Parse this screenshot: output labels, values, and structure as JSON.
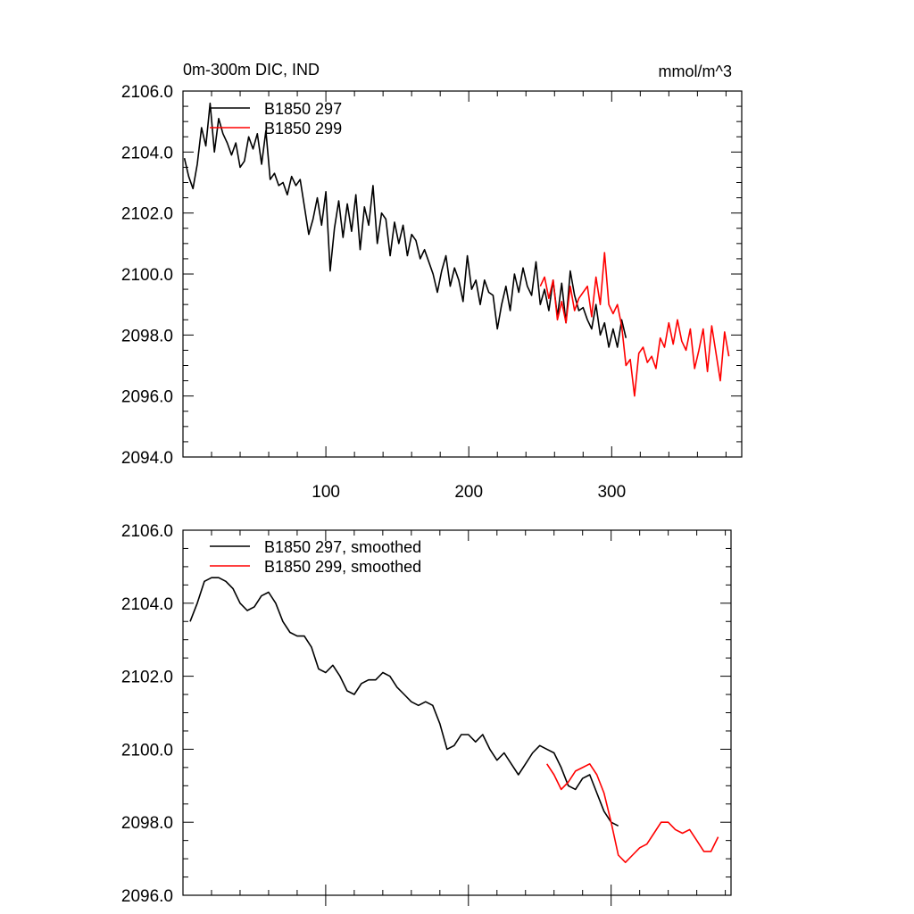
{
  "chart_data": [
    {
      "type": "line",
      "title": "0m-300m DIC, IND",
      "units_label": "mmol/m^3",
      "xlim": [
        0,
        391
      ],
      "ylim": [
        2094,
        2106
      ],
      "xticks": [
        100,
        200,
        300
      ],
      "xtick_labels": [
        "100",
        "200",
        "300"
      ],
      "yticks": [
        2094,
        2096,
        2098,
        2100,
        2102,
        2104,
        2106
      ],
      "ytick_labels": [
        "2094.0",
        "2096.0",
        "2098.0",
        "2100.0",
        "2102.0",
        "2104.0",
        "2106.0"
      ],
      "grid": false,
      "legend_position": "top-left",
      "series": [
        {
          "name": "B1850 297",
          "color": "#000000",
          "x_start": 1,
          "x_step": 3,
          "values": [
            2103.8,
            2103.2,
            2102.8,
            2103.6,
            2104.8,
            2104.2,
            2105.6,
            2104.0,
            2105.1,
            2104.6,
            2104.3,
            2103.9,
            2104.3,
            2103.5,
            2103.7,
            2104.5,
            2104.1,
            2104.6,
            2103.6,
            2104.7,
            2103.1,
            2103.3,
            2102.9,
            2103.0,
            2102.6,
            2103.2,
            2102.9,
            2103.1,
            2102.2,
            2101.3,
            2101.8,
            2102.5,
            2101.6,
            2102.7,
            2100.1,
            2101.5,
            2102.4,
            2101.2,
            2102.3,
            2101.4,
            2102.6,
            2100.8,
            2102.2,
            2101.6,
            2102.9,
            2101.0,
            2102.0,
            2101.8,
            2100.6,
            2101.7,
            2101.0,
            2101.6,
            2100.6,
            2101.3,
            2101.1,
            2100.5,
            2100.8,
            2100.4,
            2100.0,
            2099.4,
            2100.1,
            2100.6,
            2099.6,
            2100.2,
            2099.8,
            2099.1,
            2100.6,
            2099.5,
            2099.8,
            2099.0,
            2099.8,
            2099.4,
            2099.3,
            2098.2,
            2099.0,
            2099.6,
            2098.8,
            2100.0,
            2099.4,
            2100.2,
            2099.6,
            2099.3,
            2100.4,
            2099.0,
            2099.5,
            2098.8,
            2099.8,
            2098.6,
            2099.7,
            2098.4,
            2100.1,
            2099.3,
            2098.8,
            2098.9,
            2098.5,
            2098.2,
            2099.0,
            2098.0,
            2098.4,
            2097.6,
            2098.2,
            2097.6,
            2098.5,
            2097.9
          ]
        },
        {
          "name": "B1850 299",
          "color": "#ff0000",
          "x_start": 250,
          "x_step": 3,
          "values": [
            2099.6,
            2099.9,
            2099.2,
            2099.8,
            2098.5,
            2099.1,
            2098.4,
            2099.6,
            2098.8,
            2099.2,
            2099.4,
            2099.6,
            2098.6,
            2099.9,
            2099.0,
            2100.7,
            2099.0,
            2098.7,
            2099.0,
            2098.3,
            2097.0,
            2097.2,
            2096.0,
            2097.4,
            2097.6,
            2097.1,
            2097.3,
            2096.9,
            2097.9,
            2097.6,
            2098.4,
            2097.7,
            2098.5,
            2097.8,
            2097.5,
            2098.2,
            2096.9,
            2097.5,
            2098.2,
            2096.8,
            2098.3,
            2097.4,
            2096.5,
            2098.1,
            2097.3
          ]
        }
      ]
    },
    {
      "type": "line",
      "xlim": [
        0,
        384
      ],
      "ylim": [
        2096,
        2106
      ],
      "xticks": [
        100,
        200,
        300
      ],
      "yticks": [
        2096,
        2098,
        2100,
        2102,
        2104,
        2106
      ],
      "ytick_labels": [
        "2096.0",
        "2098.0",
        "2100.0",
        "2102.0",
        "2104.0",
        "2106.0"
      ],
      "grid": false,
      "legend_position": "top-left",
      "series": [
        {
          "name": "B1850 297, smoothed",
          "color": "#000000",
          "x_start": 5,
          "x_step": 5,
          "values": [
            2103.5,
            2104.0,
            2104.6,
            2104.7,
            2104.7,
            2104.6,
            2104.4,
            2104.0,
            2103.8,
            2103.9,
            2104.2,
            2104.3,
            2104.0,
            2103.5,
            2103.2,
            2103.1,
            2103.1,
            2102.8,
            2102.2,
            2102.1,
            2102.3,
            2102.0,
            2101.6,
            2101.5,
            2101.8,
            2101.9,
            2101.9,
            2102.1,
            2102.0,
            2101.7,
            2101.5,
            2101.3,
            2101.2,
            2101.3,
            2101.2,
            2100.7,
            2100.0,
            2100.1,
            2100.4,
            2100.4,
            2100.2,
            2100.4,
            2100.0,
            2099.7,
            2099.9,
            2099.6,
            2099.3,
            2099.6,
            2099.9,
            2100.1,
            2100.0,
            2099.9,
            2099.5,
            2099.0,
            2098.9,
            2099.2,
            2099.3,
            2098.8,
            2098.3,
            2098.0,
            2097.9
          ]
        },
        {
          "name": "B1850 299, smoothed",
          "color": "#ff0000",
          "x_start": 255,
          "x_step": 5,
          "values": [
            2099.6,
            2099.3,
            2098.9,
            2099.1,
            2099.4,
            2099.5,
            2099.6,
            2099.3,
            2098.8,
            2098.0,
            2097.1,
            2096.9,
            2097.1,
            2097.3,
            2097.4,
            2097.7,
            2098.0,
            2098.0,
            2097.8,
            2097.7,
            2097.8,
            2097.5,
            2097.2,
            2097.2,
            2097.6
          ]
        }
      ]
    }
  ]
}
